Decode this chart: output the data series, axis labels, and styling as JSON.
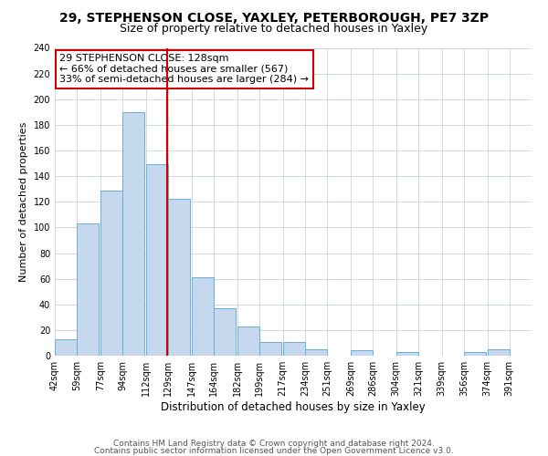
{
  "title": "29, STEPHENSON CLOSE, YAXLEY, PETERBOROUGH, PE7 3ZP",
  "subtitle": "Size of property relative to detached houses in Yaxley",
  "xlabel": "Distribution of detached houses by size in Yaxley",
  "ylabel": "Number of detached properties",
  "bar_left_edges": [
    42,
    59,
    77,
    94,
    112,
    129,
    147,
    164,
    182,
    199,
    217,
    234,
    251,
    269,
    286,
    304,
    321,
    339,
    356,
    374
  ],
  "bar_heights": [
    13,
    103,
    129,
    190,
    149,
    122,
    61,
    37,
    23,
    11,
    11,
    5,
    0,
    4,
    0,
    3,
    0,
    0,
    3,
    5
  ],
  "bin_width": 17,
  "tick_labels": [
    "42sqm",
    "59sqm",
    "77sqm",
    "94sqm",
    "112sqm",
    "129sqm",
    "147sqm",
    "164sqm",
    "182sqm",
    "199sqm",
    "217sqm",
    "234sqm",
    "251sqm",
    "269sqm",
    "286sqm",
    "304sqm",
    "321sqm",
    "339sqm",
    "356sqm",
    "374sqm",
    "391sqm"
  ],
  "tick_positions": [
    42,
    59,
    77,
    94,
    112,
    129,
    147,
    164,
    182,
    199,
    217,
    234,
    251,
    269,
    286,
    304,
    321,
    339,
    356,
    374,
    391
  ],
  "property_line_x": 128,
  "ylim": [
    0,
    240
  ],
  "yticks": [
    0,
    20,
    40,
    60,
    80,
    100,
    120,
    140,
    160,
    180,
    200,
    220,
    240
  ],
  "bar_fill_color": "#c5d8ed",
  "bar_edge_color": "#6baed6",
  "annotation_box_text": "29 STEPHENSON CLOSE: 128sqm\n← 66% of detached houses are smaller (567)\n33% of semi-detached houses are larger (284) →",
  "annotation_box_edge_color": "#cc0000",
  "property_line_color": "#cc0000",
  "grid_color": "#d0d8e4",
  "background_color": "#ffffff",
  "footer_line1": "Contains HM Land Registry data © Crown copyright and database right 2024.",
  "footer_line2": "Contains public sector information licensed under the Open Government Licence v3.0.",
  "title_fontsize": 10,
  "subtitle_fontsize": 9,
  "xlabel_fontsize": 8.5,
  "ylabel_fontsize": 8,
  "tick_fontsize": 7,
  "annot_fontsize": 8,
  "footer_fontsize": 6.5
}
